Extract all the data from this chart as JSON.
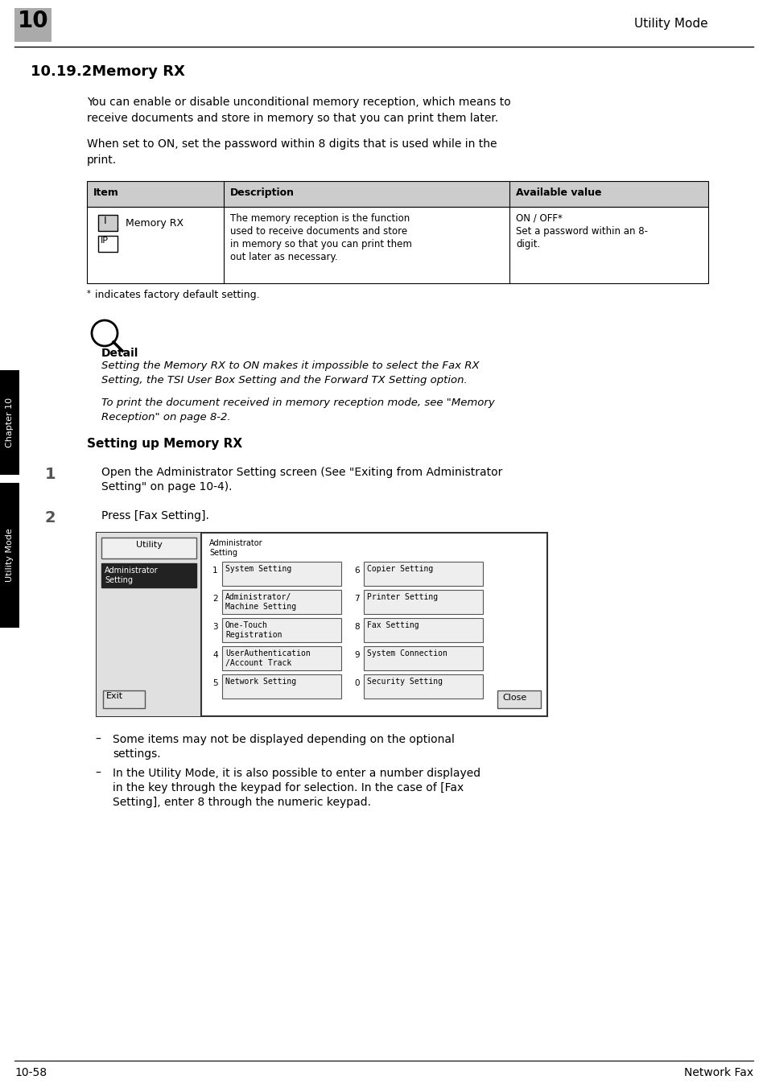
{
  "bg_color": "#ffffff",
  "header_number": "10",
  "header_number_bg": "#999999",
  "header_title": "Utility Mode",
  "footer_left": "10-58",
  "footer_right": "Network Fax",
  "section_title": "10.19.2Memory RX",
  "para1_line1": "You can enable or disable unconditional memory reception, which means to",
  "para1_line2": "receive documents and store in memory so that you can print them later.",
  "para2_line1": "When set to ON, set the password within 8 digits that is used while in the",
  "para2_line2": "print.",
  "table_col_headers": [
    "Item",
    "Description",
    "Available value"
  ],
  "table_row_name": "Memory RX",
  "table_row_desc_lines": [
    "The memory reception is the function",
    "used to receive documents and store",
    "in memory so that you can print them",
    "out later as necessary."
  ],
  "table_row_avail_lines": [
    "ON / OFF*",
    "Set a password within an 8-",
    "digit."
  ],
  "footnote_star": "*",
  "footnote_text": " indicates factory default setting.",
  "detail_label": "Detail",
  "detail_text1_line1": "Setting the Memory RX to ON makes it impossible to select the Fax RX",
  "detail_text1_line2": "Setting, the TSI User Box Setting and the Forward TX Setting option.",
  "detail_text2_line1": "To print the document received in memory reception mode, see \"Memory",
  "detail_text2_line2": "Reception\" on page 8-2.",
  "setting_title": "Setting up Memory RX",
  "step1_num": "1",
  "step1_line1": "Open the Administrator Setting screen (See \"Exiting from Administrator",
  "step1_line2": "Setting\" on page 10-4).",
  "step2_num": "2",
  "step2_text": "Press [Fax Setting].",
  "bullet1_line1": "Some items may not be displayed depending on the optional",
  "bullet1_line2": "settings.",
  "bullet2_line1": "In the Utility Mode, it is also possible to enter a number displayed",
  "bullet2_line2": "in the key through the keypad for selection. In the case of [Fax",
  "bullet2_line3": "Setting], enter 8 through the numeric keypad.",
  "sidebar_text": "Chapter 10",
  "sidebar_text2": "Utility Mode",
  "sidebar_bg": "#000000",
  "sidebar_text_color": "#ffffff",
  "screen_btn_labels_left": [
    "System Setting",
    "Administrator/\nMachine Setting",
    "One-Touch\nRegistration",
    "UserAuthentication\n/Account Track",
    "Network Setting"
  ],
  "screen_btn_nums_left": [
    "1",
    "2",
    "3",
    "4",
    "5"
  ],
  "screen_btn_labels_right": [
    "Copier Setting",
    "Printer Setting",
    "Fax Setting",
    "System Connection",
    "Security Setting"
  ],
  "screen_btn_nums_right": [
    "6",
    "7",
    "8",
    "9",
    "0"
  ]
}
